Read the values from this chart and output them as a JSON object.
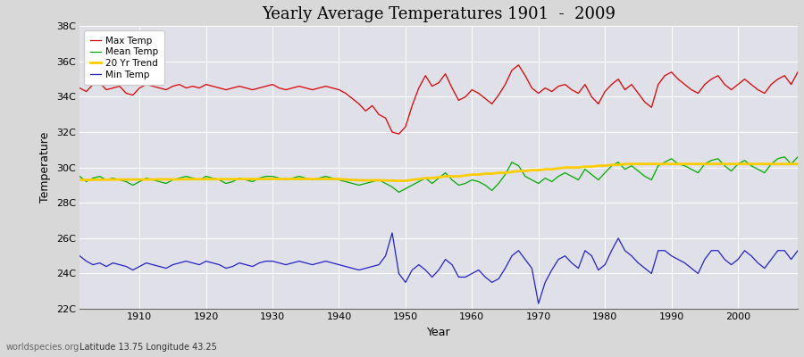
{
  "title": "Yearly Average Temperatures 1901  -  2009",
  "xlabel": "Year",
  "ylabel": "Temperature",
  "subtitle_lat": "Latitude 13.75 Longitude 43.25",
  "credit": "worldspecies.org",
  "start_year": 1901,
  "end_year": 2009,
  "ylim": [
    22,
    38
  ],
  "yticks": [
    22,
    24,
    26,
    28,
    30,
    32,
    34,
    36,
    38
  ],
  "ytick_labels": [
    "22C",
    "24C",
    "26C",
    "28C",
    "30C",
    "32C",
    "34C",
    "36C",
    "38C"
  ],
  "fig_bg_color": "#d8d8d8",
  "plot_bg_color": "#e0e0e8",
  "grid_color": "#ffffff",
  "colors": {
    "max": "#dd0000",
    "mean": "#00aa00",
    "min": "#2222cc",
    "trend": "#ffcc00"
  },
  "max_temp": [
    34.5,
    34.3,
    34.7,
    34.8,
    34.4,
    34.5,
    34.6,
    34.2,
    34.1,
    34.5,
    34.7,
    34.6,
    34.5,
    34.4,
    34.6,
    34.7,
    34.5,
    34.6,
    34.5,
    34.7,
    34.6,
    34.5,
    34.4,
    34.5,
    34.6,
    34.5,
    34.4,
    34.5,
    34.6,
    34.7,
    34.5,
    34.4,
    34.5,
    34.6,
    34.5,
    34.4,
    34.5,
    34.6,
    34.5,
    34.4,
    34.2,
    33.9,
    33.6,
    33.2,
    33.5,
    33.0,
    32.8,
    32.0,
    31.9,
    32.3,
    33.5,
    34.5,
    35.2,
    34.6,
    34.8,
    35.3,
    34.5,
    33.8,
    34.0,
    34.4,
    34.2,
    33.9,
    33.6,
    34.1,
    34.7,
    35.5,
    35.8,
    35.2,
    34.5,
    34.2,
    34.5,
    34.3,
    34.6,
    34.7,
    34.4,
    34.2,
    34.7,
    34.0,
    33.6,
    34.3,
    34.7,
    35.0,
    34.4,
    34.7,
    34.2,
    33.7,
    33.4,
    34.7,
    35.2,
    35.4,
    35.0,
    34.7,
    34.4,
    34.2,
    34.7,
    35.0,
    35.2,
    34.7,
    34.4,
    34.7,
    35.0,
    34.7,
    34.4,
    34.2,
    34.7,
    35.0,
    35.2,
    34.7,
    35.4
  ],
  "mean_temp": [
    29.5,
    29.2,
    29.4,
    29.5,
    29.3,
    29.4,
    29.3,
    29.2,
    29.0,
    29.2,
    29.4,
    29.3,
    29.2,
    29.1,
    29.3,
    29.4,
    29.5,
    29.4,
    29.3,
    29.5,
    29.4,
    29.3,
    29.1,
    29.2,
    29.4,
    29.3,
    29.2,
    29.4,
    29.5,
    29.5,
    29.4,
    29.3,
    29.4,
    29.5,
    29.4,
    29.3,
    29.4,
    29.5,
    29.4,
    29.3,
    29.2,
    29.1,
    29.0,
    29.1,
    29.2,
    29.3,
    29.1,
    28.9,
    28.6,
    28.8,
    29.0,
    29.2,
    29.4,
    29.1,
    29.4,
    29.7,
    29.3,
    29.0,
    29.1,
    29.3,
    29.2,
    29.0,
    28.7,
    29.1,
    29.6,
    30.3,
    30.1,
    29.5,
    29.3,
    29.1,
    29.4,
    29.2,
    29.5,
    29.7,
    29.5,
    29.3,
    29.9,
    29.6,
    29.3,
    29.7,
    30.1,
    30.3,
    29.9,
    30.1,
    29.8,
    29.5,
    29.3,
    30.1,
    30.3,
    30.5,
    30.2,
    30.1,
    29.9,
    29.7,
    30.2,
    30.4,
    30.5,
    30.1,
    29.8,
    30.2,
    30.4,
    30.1,
    29.9,
    29.7,
    30.2,
    30.5,
    30.6,
    30.2,
    30.6
  ],
  "min_temp": [
    25.0,
    24.7,
    24.5,
    24.6,
    24.4,
    24.6,
    24.5,
    24.4,
    24.2,
    24.4,
    24.6,
    24.5,
    24.4,
    24.3,
    24.5,
    24.6,
    24.7,
    24.6,
    24.5,
    24.7,
    24.6,
    24.5,
    24.3,
    24.4,
    24.6,
    24.5,
    24.4,
    24.6,
    24.7,
    24.7,
    24.6,
    24.5,
    24.6,
    24.7,
    24.6,
    24.5,
    24.6,
    24.7,
    24.6,
    24.5,
    24.4,
    24.3,
    24.2,
    24.3,
    24.4,
    24.5,
    25.0,
    26.3,
    24.0,
    23.5,
    24.2,
    24.5,
    24.2,
    23.8,
    24.2,
    24.8,
    24.5,
    23.8,
    23.8,
    24.0,
    24.2,
    23.8,
    23.5,
    23.7,
    24.3,
    25.0,
    25.3,
    24.8,
    24.3,
    22.3,
    23.5,
    24.2,
    24.8,
    25.0,
    24.6,
    24.3,
    25.3,
    25.0,
    24.2,
    24.5,
    25.3,
    26.0,
    25.3,
    25.0,
    24.6,
    24.3,
    24.0,
    25.3,
    25.3,
    25.0,
    24.8,
    24.6,
    24.3,
    24.0,
    24.8,
    25.3,
    25.3,
    24.8,
    24.5,
    24.8,
    25.3,
    25.0,
    24.6,
    24.3,
    24.8,
    25.3,
    25.3,
    24.8,
    25.3
  ],
  "trend_temp": [
    29.3,
    29.3,
    29.31,
    29.31,
    29.31,
    29.32,
    29.32,
    29.32,
    29.32,
    29.32,
    29.32,
    29.32,
    29.33,
    29.33,
    29.33,
    29.33,
    29.34,
    29.34,
    29.34,
    29.34,
    29.34,
    29.34,
    29.34,
    29.34,
    29.35,
    29.35,
    29.35,
    29.35,
    29.35,
    29.35,
    29.35,
    29.35,
    29.35,
    29.35,
    29.35,
    29.35,
    29.35,
    29.35,
    29.35,
    29.35,
    29.32,
    29.3,
    29.28,
    29.28,
    29.28,
    29.28,
    29.27,
    29.26,
    29.25,
    29.25,
    29.3,
    29.35,
    29.4,
    29.4,
    29.45,
    29.5,
    29.5,
    29.5,
    29.55,
    29.6,
    29.6,
    29.65,
    29.65,
    29.7,
    29.7,
    29.75,
    29.8,
    29.8,
    29.85,
    29.85,
    29.9,
    29.9,
    29.95,
    30.0,
    30.0,
    30.0,
    30.05,
    30.05,
    30.1,
    30.1,
    30.15,
    30.15,
    30.2,
    30.2,
    30.2,
    30.2,
    30.2,
    30.2,
    30.2,
    30.2,
    30.2,
    30.2,
    30.2,
    30.2,
    30.2,
    30.2,
    30.2,
    30.2,
    30.2,
    30.2,
    30.2,
    30.2,
    30.2,
    30.2,
    30.2,
    30.2,
    30.2,
    30.2,
    30.2
  ]
}
